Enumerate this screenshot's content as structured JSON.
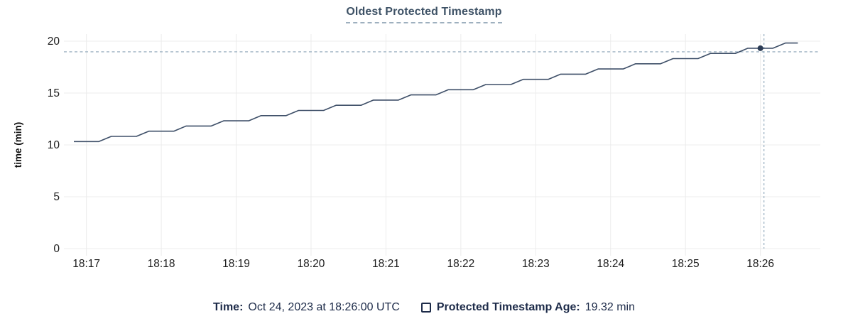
{
  "title": "Oldest Protected Timestamp",
  "legend": {
    "time_label": "Time:",
    "time_value": "Oct 24, 2023 at 18:26:00 UTC",
    "series_label": "Protected Timestamp Age:",
    "series_value": "19.32 min"
  },
  "colors": {
    "line": "#3e4f68",
    "dot": "#2c3c55",
    "grid": "#ececec",
    "crosshair": "#9fb4c4",
    "axis_text": "#1c1c1c",
    "title_text": "#3e5266",
    "title_underline": "#9eb0bf",
    "legend_text": "#1d2b49",
    "background": "#ffffff"
  },
  "chart_data": {
    "type": "line",
    "title": "Oldest Protected Timestamp",
    "xlabel": "",
    "ylabel": "time (min)",
    "ylim": [
      0,
      20
    ],
    "yticks": [
      0,
      5,
      10,
      15,
      20
    ],
    "x_unit": "minutes after 18:17:00 UTC",
    "x_domain": [
      -0.3,
      9.8
    ],
    "x_ticks": [
      0,
      1,
      2,
      3,
      4,
      5,
      6,
      7,
      8,
      9
    ],
    "x_tick_labels": [
      "18:17",
      "18:18",
      "18:19",
      "18:20",
      "18:21",
      "18:22",
      "18:23",
      "18:24",
      "18:25",
      "18:26"
    ],
    "grid": true,
    "legend_position": "bottom-center",
    "series": [
      {
        "name": "Protected Timestamp Age",
        "x": [
          -0.167,
          0,
          0.167,
          0.333,
          0.5,
          0.667,
          0.833,
          1,
          1.167,
          1.333,
          1.5,
          1.667,
          1.833,
          2,
          2.167,
          2.333,
          2.5,
          2.667,
          2.833,
          3,
          3.167,
          3.333,
          3.5,
          3.667,
          3.833,
          4,
          4.167,
          4.333,
          4.5,
          4.667,
          4.833,
          5,
          5.167,
          5.333,
          5.5,
          5.667,
          5.833,
          6,
          6.167,
          6.333,
          6.5,
          6.667,
          6.833,
          7,
          7.167,
          7.333,
          7.5,
          7.667,
          7.833,
          8,
          8.167,
          8.333,
          8.5,
          8.667,
          8.833,
          9,
          9.167,
          9.333,
          9.5
        ],
        "y": [
          10.32,
          10.32,
          10.32,
          10.82,
          10.82,
          10.82,
          11.32,
          11.32,
          11.32,
          11.82,
          11.82,
          11.82,
          12.32,
          12.32,
          12.32,
          12.82,
          12.82,
          12.82,
          13.32,
          13.32,
          13.32,
          13.82,
          13.82,
          13.82,
          14.32,
          14.32,
          14.32,
          14.82,
          14.82,
          14.82,
          15.32,
          15.32,
          15.32,
          15.82,
          15.82,
          15.82,
          16.32,
          16.32,
          16.32,
          16.82,
          16.82,
          16.82,
          17.32,
          17.32,
          17.32,
          17.82,
          17.82,
          17.82,
          18.32,
          18.32,
          18.32,
          18.82,
          18.82,
          18.82,
          19.32,
          19.32,
          19.32,
          19.82,
          19.82
        ]
      }
    ],
    "hover_point": {
      "x": 9,
      "y": 19.32,
      "time_label": "Oct 24, 2023 at 18:26:00 UTC",
      "value_label": "19.32 min"
    }
  }
}
